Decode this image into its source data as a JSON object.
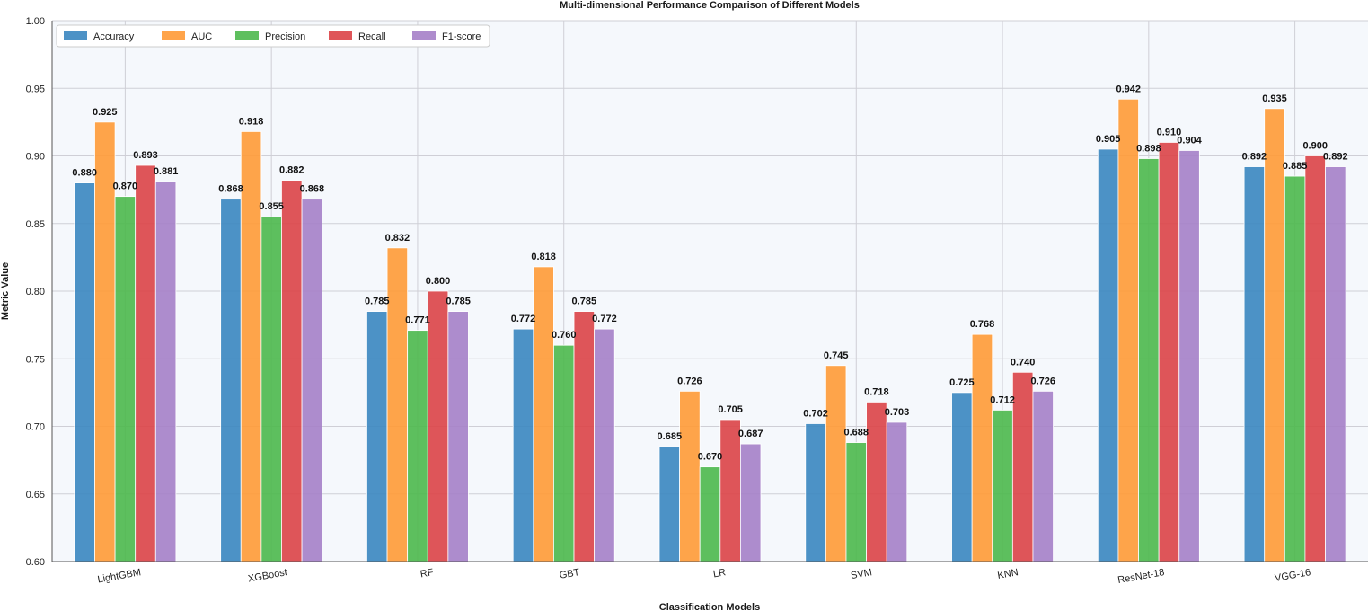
{
  "chart_data": {
    "type": "bar",
    "title": "Multi-dimensional Performance Comparison of Different Models",
    "xlabel": "Classification Models",
    "ylabel": "Metric Value",
    "ylim": [
      0.6,
      1.0
    ],
    "yticks": [
      "0.60",
      "0.65",
      "0.70",
      "0.75",
      "0.80",
      "0.85",
      "0.90",
      "0.95",
      "1.00"
    ],
    "categories": [
      "LightGBM",
      "XGBoost",
      "RF",
      "GBT",
      "LR",
      "SVM",
      "KNN",
      "ResNet-18",
      "VGG-16"
    ],
    "series": [
      {
        "name": "Accuracy",
        "color": "#3a86c0",
        "values": [
          0.88,
          0.868,
          0.785,
          0.772,
          0.685,
          0.702,
          0.725,
          0.905,
          0.892
        ],
        "labels": [
          "0.880",
          "0.868",
          "0.785",
          "0.772",
          "0.685",
          "0.702",
          "0.725",
          "0.905",
          "0.892"
        ]
      },
      {
        "name": "AUC",
        "color": "#ff9a36",
        "values": [
          0.925,
          0.918,
          0.832,
          0.818,
          0.726,
          0.745,
          0.768,
          0.942,
          0.935
        ],
        "labels": [
          "0.925",
          "0.918",
          "0.832",
          "0.818",
          "0.726",
          "0.745",
          "0.768",
          "0.942",
          "0.935"
        ]
      },
      {
        "name": "Precision",
        "color": "#4cb84c",
        "values": [
          0.87,
          0.855,
          0.771,
          0.76,
          0.67,
          0.688,
          0.712,
          0.898,
          0.885
        ],
        "labels": [
          "0.870",
          "0.855",
          "0.771",
          "0.760",
          "0.670",
          "0.688",
          "0.712",
          "0.898",
          "0.885"
        ]
      },
      {
        "name": "Recall",
        "color": "#dc4347",
        "values": [
          0.893,
          0.882,
          0.8,
          0.785,
          0.705,
          0.718,
          0.74,
          0.91,
          0.9
        ],
        "labels": [
          "0.893",
          "0.882",
          "0.800",
          "0.785",
          "0.705",
          "0.718",
          "0.740",
          "0.910",
          "0.900"
        ]
      },
      {
        "name": "F1-score",
        "color": "#a57fc8",
        "values": [
          0.881,
          0.868,
          0.785,
          0.772,
          0.687,
          0.703,
          0.726,
          0.904,
          0.892
        ],
        "labels": [
          "0.881",
          "0.868",
          "0.785",
          "0.772",
          "0.687",
          "0.703",
          "0.726",
          "0.904",
          "0.892"
        ]
      }
    ],
    "grid": true,
    "legend_position": "top-left",
    "background": "#f5f8fc"
  }
}
